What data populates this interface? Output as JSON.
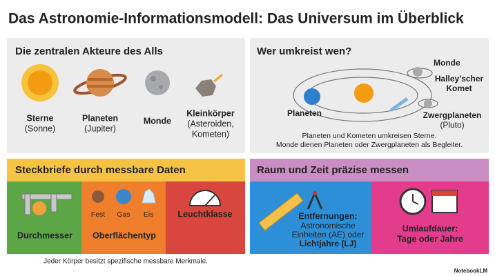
{
  "title": "Das Astronomie-Informationsmodell: Das Universum im Überblick",
  "actors": {
    "heading": "Die zentralen Akteure des Alls",
    "items": [
      {
        "lines": [
          "Sterne",
          "(Sonne)"
        ]
      },
      {
        "lines": [
          "Planeten",
          "(Jupiter)"
        ]
      },
      {
        "lines": [
          "Monde"
        ]
      },
      {
        "lines": [
          "Kleinkörper",
          "(Asteroiden,",
          "Kometen)"
        ]
      }
    ]
  },
  "orbits": {
    "heading": "Wer umkreist wen?",
    "labels": {
      "moons": "Monde",
      "comet": [
        "Halley'scher",
        "Komet"
      ],
      "planets": "Planeten",
      "dwarfs": [
        "Zwergplaneten",
        "(Pluto)"
      ]
    },
    "caption": [
      "Planeten und Kometen umkreisen Sterne.",
      "Monde dienen Planeten oder Zwergplaneten als Begleiter."
    ]
  },
  "profiles": {
    "heading": "Steckbriefe durch messbare Daten",
    "diameter": "Durchmesser",
    "surface": "Oberflächentyp",
    "surface_types": [
      "Fest",
      "Gas",
      "Eis"
    ],
    "luminosity": "Leuchtklasse",
    "footer": "Jeder Körper besitzt spezifische messbare Merkmale."
  },
  "measure": {
    "heading": "Raum und Zeit präzise messen",
    "distance": {
      "label": "Entfernungen:",
      "lines": [
        "Astronomische",
        "Einheiten (AE) oder",
        "Lichtjahre (LJ)"
      ]
    },
    "period": {
      "label": "Umlaufdauer:",
      "text": "Tage oder Jahre"
    }
  },
  "brand": "NotebookLM"
}
